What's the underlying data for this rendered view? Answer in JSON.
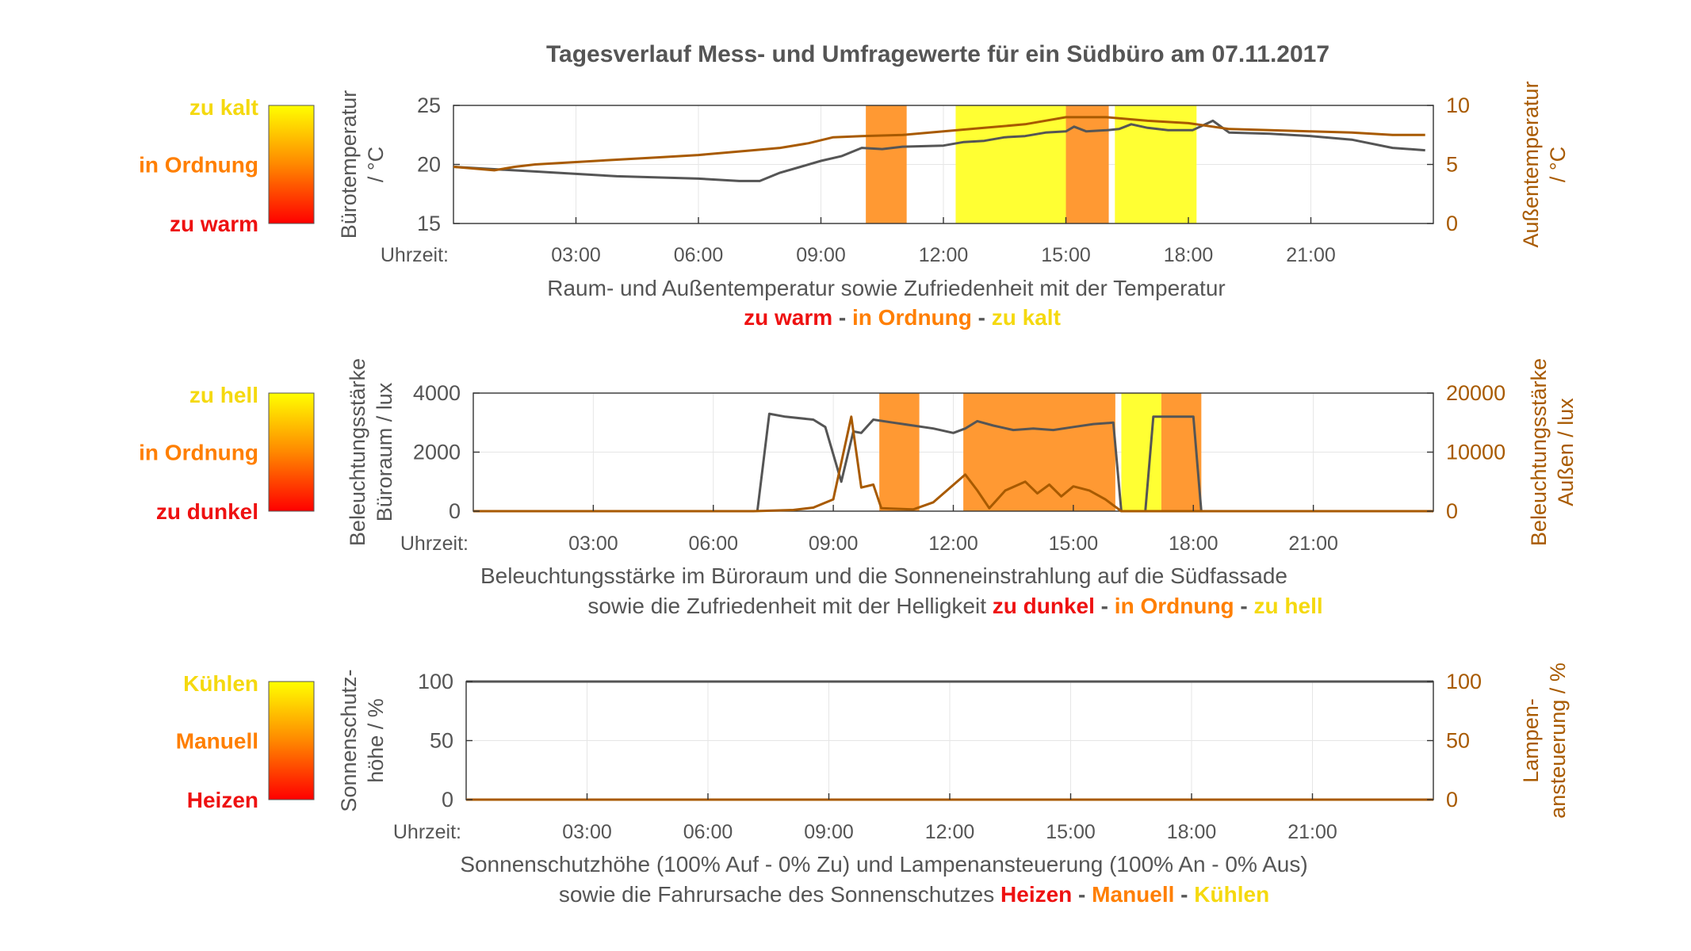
{
  "title": "Tagesverlauf Mess- und Umfragewerte für ein Südbüro am 07.11.2017",
  "colors": {
    "red": "#ff0000",
    "orange": "#ff8800",
    "yellow": "#ffff00",
    "red_text": "#ee1111",
    "orange_text": "#ff7f00",
    "yellow_text": "#f5d90f",
    "line_dark": "#555555",
    "line_brown": "#a85a00",
    "orange_band": "#ff9933",
    "yellow_band": "#ffff33"
  },
  "time_axis_label": "Uhrzeit:",
  "chart_data": [
    {
      "type": "line",
      "y_left_label": [
        "Bürotemperatur",
        "/ °C"
      ],
      "y_right_label": [
        "Außentemperatur",
        "/ °C"
      ],
      "x_ticks": [
        "03:00",
        "06:00",
        "09:00",
        "12:00",
        "15:00",
        "18:00",
        "21:00"
      ],
      "x_range_hours": [
        0,
        24
      ],
      "y_left_range": [
        15,
        25
      ],
      "y_left_ticks": [
        "15",
        "20",
        "25"
      ],
      "y_right_range": [
        0,
        10
      ],
      "y_right_ticks": [
        "0",
        "5",
        "10"
      ],
      "caption_line1": "Raum- und Außentemperatur sowie Zufriedenheit mit der Temperatur",
      "legend": [
        {
          "label": "zu warm",
          "color": "#ee1111"
        },
        {
          "label": "in Ordnung",
          "color": "#ff7f00"
        },
        {
          "label": "zu kalt",
          "color": "#f5d90f"
        }
      ],
      "colorbar_labels": {
        "top": "zu kalt",
        "middle": "in Ordnung",
        "bottom": "zu warm"
      },
      "bands": [
        {
          "start": 10.1,
          "end": 11.1,
          "category": "in Ordnung"
        },
        {
          "start": 12.3,
          "end": 15.0,
          "category": "zu kalt"
        },
        {
          "start": 15.0,
          "end": 16.05,
          "category": "in Ordnung"
        },
        {
          "start": 16.2,
          "end": 18.2,
          "category": "zu kalt"
        }
      ],
      "series": [
        {
          "axis": "left",
          "color": "dark",
          "points": [
            [
              0,
              19.8
            ],
            [
              1,
              19.6
            ],
            [
              2,
              19.4
            ],
            [
              3,
              19.2
            ],
            [
              4,
              19.0
            ],
            [
              5,
              18.9
            ],
            [
              6,
              18.8
            ],
            [
              7,
              18.6
            ],
            [
              7.5,
              18.6
            ],
            [
              8,
              19.3
            ],
            [
              8.5,
              19.8
            ],
            [
              9,
              20.3
            ],
            [
              9.5,
              20.7
            ],
            [
              10,
              21.4
            ],
            [
              10.5,
              21.3
            ],
            [
              11,
              21.5
            ],
            [
              12,
              21.6
            ],
            [
              12.5,
              21.9
            ],
            [
              13,
              22.0
            ],
            [
              13.5,
              22.3
            ],
            [
              14,
              22.4
            ],
            [
              14.5,
              22.7
            ],
            [
              15,
              22.8
            ],
            [
              15.2,
              23.2
            ],
            [
              15.5,
              22.8
            ],
            [
              16,
              22.9
            ],
            [
              16.3,
              23.0
            ],
            [
              16.6,
              23.4
            ],
            [
              17,
              23.1
            ],
            [
              17.5,
              22.9
            ],
            [
              18.1,
              22.9
            ],
            [
              18.6,
              23.7
            ],
            [
              19,
              22.7
            ],
            [
              20,
              22.6
            ],
            [
              21,
              22.4
            ],
            [
              22,
              22.1
            ],
            [
              23,
              21.4
            ],
            [
              23.8,
              21.2
            ]
          ]
        },
        {
          "axis": "right",
          "color": "brown",
          "points": [
            [
              0,
              4.8
            ],
            [
              1,
              4.5
            ],
            [
              1.5,
              4.8
            ],
            [
              2,
              5.0
            ],
            [
              3,
              5.2
            ],
            [
              4,
              5.4
            ],
            [
              5,
              5.6
            ],
            [
              6,
              5.8
            ],
            [
              7,
              6.1
            ],
            [
              8,
              6.4
            ],
            [
              8.7,
              6.8
            ],
            [
              9.3,
              7.3
            ],
            [
              10,
              7.4
            ],
            [
              11,
              7.5
            ],
            [
              12,
              7.8
            ],
            [
              13,
              8.1
            ],
            [
              14,
              8.4
            ],
            [
              15,
              9.0
            ],
            [
              16,
              9.0
            ],
            [
              17,
              8.7
            ],
            [
              18,
              8.5
            ],
            [
              19,
              8.0
            ],
            [
              20,
              7.9
            ],
            [
              21,
              7.8
            ],
            [
              22,
              7.7
            ],
            [
              23,
              7.5
            ],
            [
              23.8,
              7.5
            ]
          ]
        }
      ]
    },
    {
      "type": "line",
      "y_left_label": [
        "Beleuchtungsstärke",
        "Büroraum / lux"
      ],
      "y_right_label": [
        "Beleuchtungsstärke",
        "Außen / lux"
      ],
      "x_ticks": [
        "03:00",
        "06:00",
        "09:00",
        "12:00",
        "15:00",
        "18:00",
        "21:00"
      ],
      "x_range_hours": [
        0,
        24
      ],
      "y_left_range": [
        0,
        4000
      ],
      "y_left_ticks": [
        "0",
        "2000",
        "4000"
      ],
      "y_right_range": [
        0,
        20000
      ],
      "y_right_ticks": [
        "0",
        "10000",
        "20000"
      ],
      "caption_line1": "Beleuchtungsstärke im Büroraum und die Sonneneinstrahlung auf die Südfassade",
      "caption_line2_prefix": "sowie die Zufriedenheit mit der Helligkeit",
      "legend": [
        {
          "label": "zu dunkel",
          "color": "#ee1111"
        },
        {
          "label": "in Ordnung",
          "color": "#ff7f00"
        },
        {
          "label": "zu hell",
          "color": "#f5d90f"
        }
      ],
      "colorbar_labels": {
        "top": "zu hell",
        "middle": "in Ordnung",
        "bottom": "zu dunkel"
      },
      "bands": [
        {
          "start": 10.15,
          "end": 11.15,
          "category": "in Ordnung"
        },
        {
          "start": 12.25,
          "end": 16.05,
          "category": "in Ordnung"
        },
        {
          "start": 16.2,
          "end": 17.2,
          "category": "zu hell"
        },
        {
          "start": 17.2,
          "end": 18.2,
          "category": "in Ordnung"
        }
      ],
      "series": [
        {
          "axis": "left",
          "color": "dark",
          "points": [
            [
              7.1,
              0
            ],
            [
              7.4,
              3300
            ],
            [
              7.8,
              3200
            ],
            [
              8.5,
              3100
            ],
            [
              8.8,
              2850
            ],
            [
              9.2,
              1000
            ],
            [
              9.5,
              2700
            ],
            [
              9.7,
              2650
            ],
            [
              10.0,
              3100
            ],
            [
              10.5,
              3000
            ],
            [
              11,
              2900
            ],
            [
              11.5,
              2800
            ],
            [
              12,
              2650
            ],
            [
              12.3,
              2800
            ],
            [
              12.6,
              3050
            ],
            [
              13,
              2900
            ],
            [
              13.5,
              2750
            ],
            [
              14,
              2800
            ],
            [
              14.5,
              2750
            ],
            [
              15,
              2850
            ],
            [
              15.5,
              2950
            ],
            [
              16.0,
              3000
            ],
            [
              16.2,
              0
            ],
            [
              16.8,
              0
            ],
            [
              17,
              3200
            ],
            [
              18,
              3200
            ],
            [
              18.2,
              0
            ]
          ]
        },
        {
          "axis": "right",
          "color": "brown",
          "points": [
            [
              0,
              0
            ],
            [
              2,
              0
            ],
            [
              4,
              0
            ],
            [
              6,
              0
            ],
            [
              7,
              0
            ],
            [
              8,
              200
            ],
            [
              8.5,
              600
            ],
            [
              9.0,
              2000
            ],
            [
              9.45,
              16000
            ],
            [
              9.7,
              4000
            ],
            [
              10.0,
              4500
            ],
            [
              10.2,
              500
            ],
            [
              11.0,
              300
            ],
            [
              11.5,
              1500
            ],
            [
              12.3,
              6200
            ],
            [
              12.6,
              3500
            ],
            [
              12.9,
              500
            ],
            [
              13.3,
              3500
            ],
            [
              13.8,
              5000
            ],
            [
              14.1,
              3000
            ],
            [
              14.4,
              4500
            ],
            [
              14.7,
              2500
            ],
            [
              15.0,
              4200
            ],
            [
              15.4,
              3500
            ],
            [
              15.8,
              2000
            ],
            [
              16.2,
              0
            ],
            [
              18,
              0
            ],
            [
              24,
              0
            ]
          ]
        }
      ]
    },
    {
      "type": "line",
      "y_left_label": [
        "Sonnenschutz-",
        "höhe / %"
      ],
      "y_right_label": [
        "Lampen-",
        "ansteuerung / %"
      ],
      "x_ticks": [
        "03:00",
        "06:00",
        "09:00",
        "12:00",
        "15:00",
        "18:00",
        "21:00"
      ],
      "x_range_hours": [
        0,
        24
      ],
      "y_left_range": [
        0,
        100
      ],
      "y_left_ticks": [
        "0",
        "50",
        "100"
      ],
      "y_right_range": [
        0,
        100
      ],
      "y_right_ticks": [
        "0",
        "50",
        "100"
      ],
      "caption_line1": "Sonnenschutzhöhe (100% Auf - 0% Zu) und Lampenansteuerung (100% An - 0% Aus)",
      "caption_line2_prefix": "sowie die Fahrursache des Sonnenschutzes",
      "legend": [
        {
          "label": "Heizen",
          "color": "#ee1111"
        },
        {
          "label": "Manuell",
          "color": "#ff7f00"
        },
        {
          "label": "Kühlen",
          "color": "#f5d90f"
        }
      ],
      "colorbar_labels": {
        "top": "Kühlen",
        "middle": "Manuell",
        "bottom": "Heizen"
      },
      "bands": [],
      "series": [
        {
          "axis": "left",
          "color": "dark",
          "points": [
            [
              0,
              100
            ],
            [
              24,
              100
            ]
          ]
        },
        {
          "axis": "right",
          "color": "brown",
          "points": [
            [
              0,
              0
            ],
            [
              24,
              0
            ]
          ]
        }
      ]
    }
  ]
}
